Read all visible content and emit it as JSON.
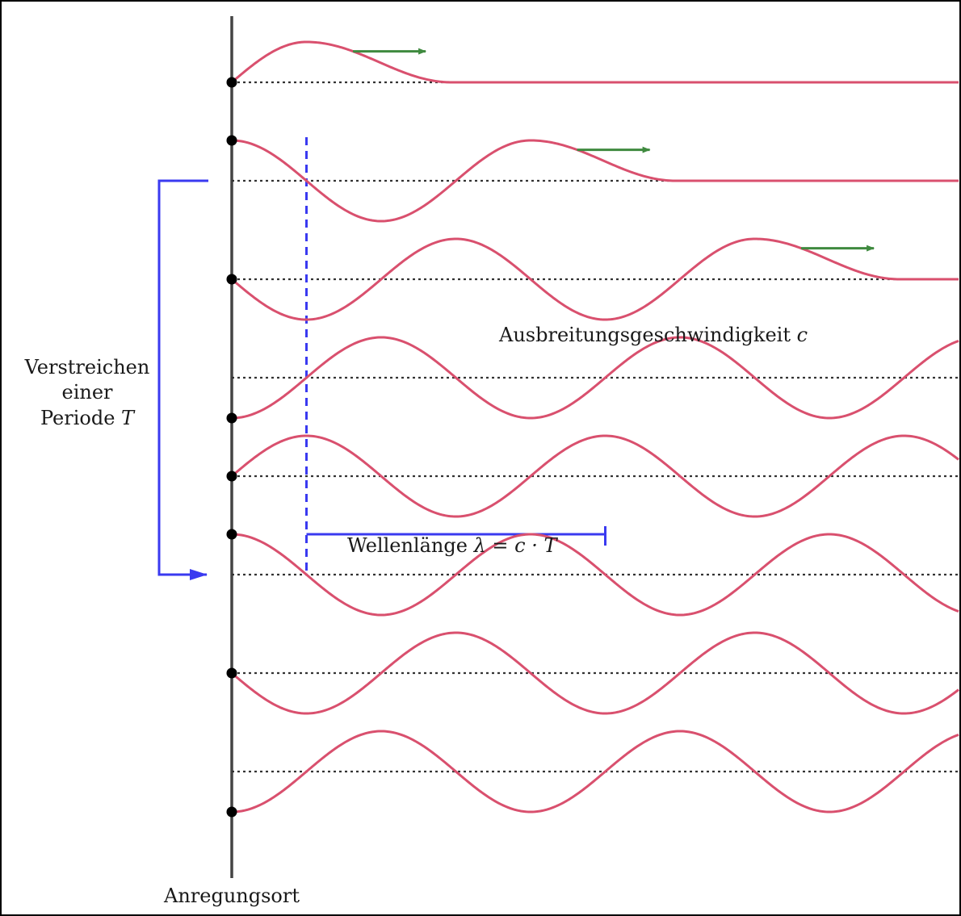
{
  "labels": {
    "excitation_site": "Anregungsort",
    "period_line1": "Verstreichen",
    "period_line2": "einer",
    "period_line3_text": "Periode ",
    "period_symbol": "T",
    "speed_text": "Ausbreitungsgeschwindigkeit ",
    "speed_symbol": "c",
    "wavelength_text": "Wellenlänge ",
    "wavelength_formula": "λ = c · T"
  },
  "colors": {
    "wave": "#d9506e",
    "arrow": "#3f8a3f",
    "axis": "#444444",
    "baseline": "#333333",
    "marker": "#3a3af0",
    "dot": "#000000"
  },
  "icons": {
    "velocity_arrow": "right-arrow-icon",
    "period_bracket": "bracket-arrow-icon"
  },
  "snapshots": [
    {
      "phase": 0.25
    },
    {
      "phase": 1.0
    },
    {
      "phase": 1.75
    },
    {
      "phase": 2.5
    },
    {
      "phase": 3.25
    },
    {
      "phase": 4.0
    },
    {
      "phase": 4.75
    },
    {
      "phase": 5.5
    }
  ]
}
